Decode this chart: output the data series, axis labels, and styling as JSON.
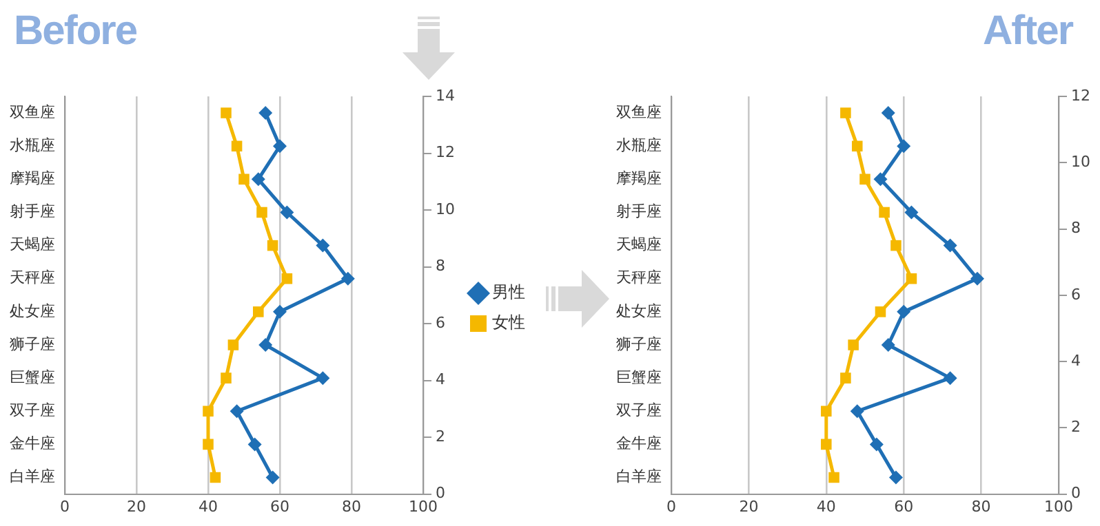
{
  "chart_data": [
    {
      "type": "line",
      "title": "Before",
      "orientation": "horizontal",
      "xlim": [
        0,
        100
      ],
      "xticks": [
        0,
        20,
        40,
        60,
        80,
        100
      ],
      "categories": [
        "双鱼座",
        "水瓶座",
        "摩羯座",
        "射手座",
        "天蝎座",
        "天秤座",
        "处女座",
        "狮子座",
        "巨蟹座",
        "双子座",
        "金牛座",
        "白羊座"
      ],
      "y2lim": [
        0,
        14
      ],
      "y2ticks": [
        0,
        2,
        4,
        6,
        8,
        10,
        12,
        14
      ],
      "grid": "x",
      "legend": "right",
      "series": [
        {
          "name": "男性",
          "color": "#1f6fb5",
          "marker": "diamond",
          "values": [
            56,
            60,
            54,
            62,
            72,
            79,
            60,
            56,
            72,
            48,
            53,
            58
          ]
        },
        {
          "name": "女性",
          "color": "#f5b800",
          "marker": "square",
          "values": [
            45,
            48,
            50,
            55,
            58,
            62,
            54,
            47,
            45,
            40,
            40,
            42
          ]
        }
      ]
    },
    {
      "type": "line",
      "title": "After",
      "orientation": "horizontal",
      "xlim": [
        0,
        100
      ],
      "xticks": [
        0,
        20,
        40,
        60,
        80,
        100
      ],
      "categories": [
        "双鱼座",
        "水瓶座",
        "摩羯座",
        "射手座",
        "天蝎座",
        "天秤座",
        "处女座",
        "狮子座",
        "巨蟹座",
        "双子座",
        "金牛座",
        "白羊座"
      ],
      "y2lim": [
        0,
        12
      ],
      "y2ticks": [
        0,
        2,
        4,
        6,
        8,
        10,
        12
      ],
      "grid": "x",
      "series": [
        {
          "color": "#1f6fb5",
          "marker": "diamond",
          "values": [
            56,
            60,
            54,
            62,
            72,
            79,
            60,
            56,
            72,
            48,
            53,
            58
          ]
        },
        {
          "color": "#f5b800",
          "marker": "square",
          "values": [
            45,
            48,
            50,
            55,
            58,
            62,
            54,
            47,
            45,
            40,
            40,
            42
          ]
        }
      ]
    }
  ]
}
